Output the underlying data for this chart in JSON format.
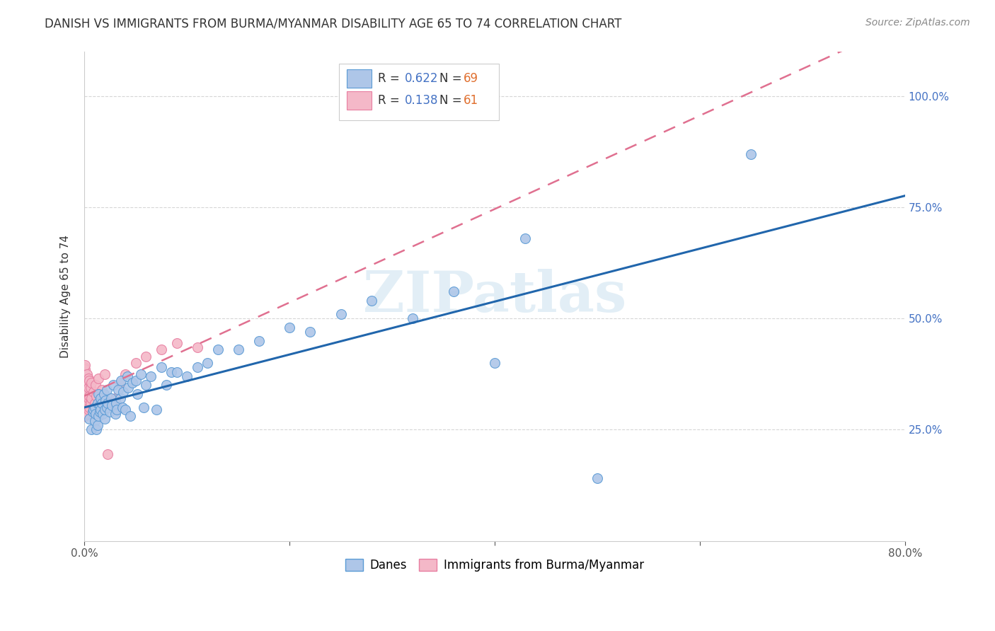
{
  "title": "DANISH VS IMMIGRANTS FROM BURMA/MYANMAR DISABILITY AGE 65 TO 74 CORRELATION CHART",
  "source": "Source: ZipAtlas.com",
  "ylabel": "Disability Age 65 to 74",
  "x_min": 0.0,
  "x_max": 0.8,
  "y_min": 0.0,
  "y_max": 1.1,
  "x_ticks": [
    0.0,
    0.2,
    0.4,
    0.6,
    0.8
  ],
  "x_tick_labels": [
    "0.0%",
    "",
    "",
    "",
    "80.0%"
  ],
  "y_ticks": [
    0.25,
    0.5,
    0.75,
    1.0
  ],
  "y_tick_labels": [
    "25.0%",
    "50.0%",
    "75.0%",
    "100.0%"
  ],
  "danes_color": "#aec6e8",
  "danes_edge_color": "#5b9bd5",
  "immigrants_color": "#f4b8c8",
  "immigrants_edge_color": "#e87ea1",
  "trend_danes_color": "#2166ac",
  "trend_immigrants_color": "#e07090",
  "legend_R_danes": "0.622",
  "legend_N_danes": "69",
  "legend_R_immigrants": "0.138",
  "legend_N_immigrants": "61",
  "danes_x": [
    0.005,
    0.007,
    0.008,
    0.009,
    0.01,
    0.01,
    0.011,
    0.012,
    0.013,
    0.013,
    0.014,
    0.014,
    0.015,
    0.015,
    0.016,
    0.016,
    0.017,
    0.018,
    0.019,
    0.02,
    0.02,
    0.021,
    0.022,
    0.022,
    0.023,
    0.025,
    0.026,
    0.027,
    0.028,
    0.03,
    0.031,
    0.032,
    0.033,
    0.035,
    0.036,
    0.037,
    0.038,
    0.04,
    0.042,
    0.043,
    0.045,
    0.047,
    0.05,
    0.052,
    0.055,
    0.058,
    0.06,
    0.065,
    0.07,
    0.075,
    0.08,
    0.085,
    0.09,
    0.1,
    0.11,
    0.12,
    0.13,
    0.15,
    0.17,
    0.2,
    0.22,
    0.25,
    0.28,
    0.32,
    0.36,
    0.4,
    0.43,
    0.5,
    0.65
  ],
  "danes_y": [
    0.275,
    0.25,
    0.29,
    0.295,
    0.27,
    0.3,
    0.285,
    0.25,
    0.26,
    0.31,
    0.28,
    0.33,
    0.29,
    0.305,
    0.295,
    0.32,
    0.31,
    0.285,
    0.33,
    0.275,
    0.295,
    0.315,
    0.3,
    0.34,
    0.31,
    0.29,
    0.32,
    0.305,
    0.35,
    0.285,
    0.31,
    0.295,
    0.34,
    0.32,
    0.36,
    0.3,
    0.335,
    0.295,
    0.37,
    0.345,
    0.28,
    0.355,
    0.36,
    0.33,
    0.375,
    0.3,
    0.35,
    0.37,
    0.295,
    0.39,
    0.35,
    0.38,
    0.38,
    0.37,
    0.39,
    0.4,
    0.43,
    0.43,
    0.45,
    0.48,
    0.47,
    0.51,
    0.54,
    0.5,
    0.56,
    0.4,
    0.68,
    0.14,
    0.87
  ],
  "immigrants_x": [
    0.0,
    0.0,
    0.0,
    0.0,
    0.0,
    0.0,
    0.0,
    0.0,
    0.0,
    0.0,
    0.001,
    0.001,
    0.001,
    0.001,
    0.001,
    0.001,
    0.001,
    0.001,
    0.001,
    0.001,
    0.002,
    0.002,
    0.002,
    0.002,
    0.002,
    0.003,
    0.003,
    0.003,
    0.003,
    0.003,
    0.004,
    0.004,
    0.004,
    0.004,
    0.005,
    0.005,
    0.005,
    0.006,
    0.006,
    0.007,
    0.007,
    0.008,
    0.009,
    0.01,
    0.011,
    0.012,
    0.013,
    0.014,
    0.015,
    0.017,
    0.02,
    0.023,
    0.025,
    0.03,
    0.035,
    0.04,
    0.05,
    0.06,
    0.075,
    0.09,
    0.11
  ],
  "immigrants_y": [
    0.28,
    0.295,
    0.31,
    0.32,
    0.33,
    0.34,
    0.35,
    0.36,
    0.38,
    0.39,
    0.28,
    0.295,
    0.31,
    0.32,
    0.335,
    0.345,
    0.36,
    0.375,
    0.385,
    0.395,
    0.285,
    0.305,
    0.325,
    0.34,
    0.36,
    0.285,
    0.31,
    0.335,
    0.355,
    0.375,
    0.295,
    0.32,
    0.345,
    0.365,
    0.3,
    0.325,
    0.36,
    0.31,
    0.345,
    0.32,
    0.355,
    0.29,
    0.335,
    0.31,
    0.35,
    0.325,
    0.295,
    0.365,
    0.33,
    0.34,
    0.375,
    0.195,
    0.31,
    0.32,
    0.355,
    0.375,
    0.4,
    0.415,
    0.43,
    0.445,
    0.435
  ],
  "watermark": "ZIPatlas",
  "background_color": "#ffffff",
  "grid_color": "#cccccc",
  "marker_size": 100,
  "title_fontsize": 12,
  "tick_fontsize": 11,
  "label_fontsize": 11
}
